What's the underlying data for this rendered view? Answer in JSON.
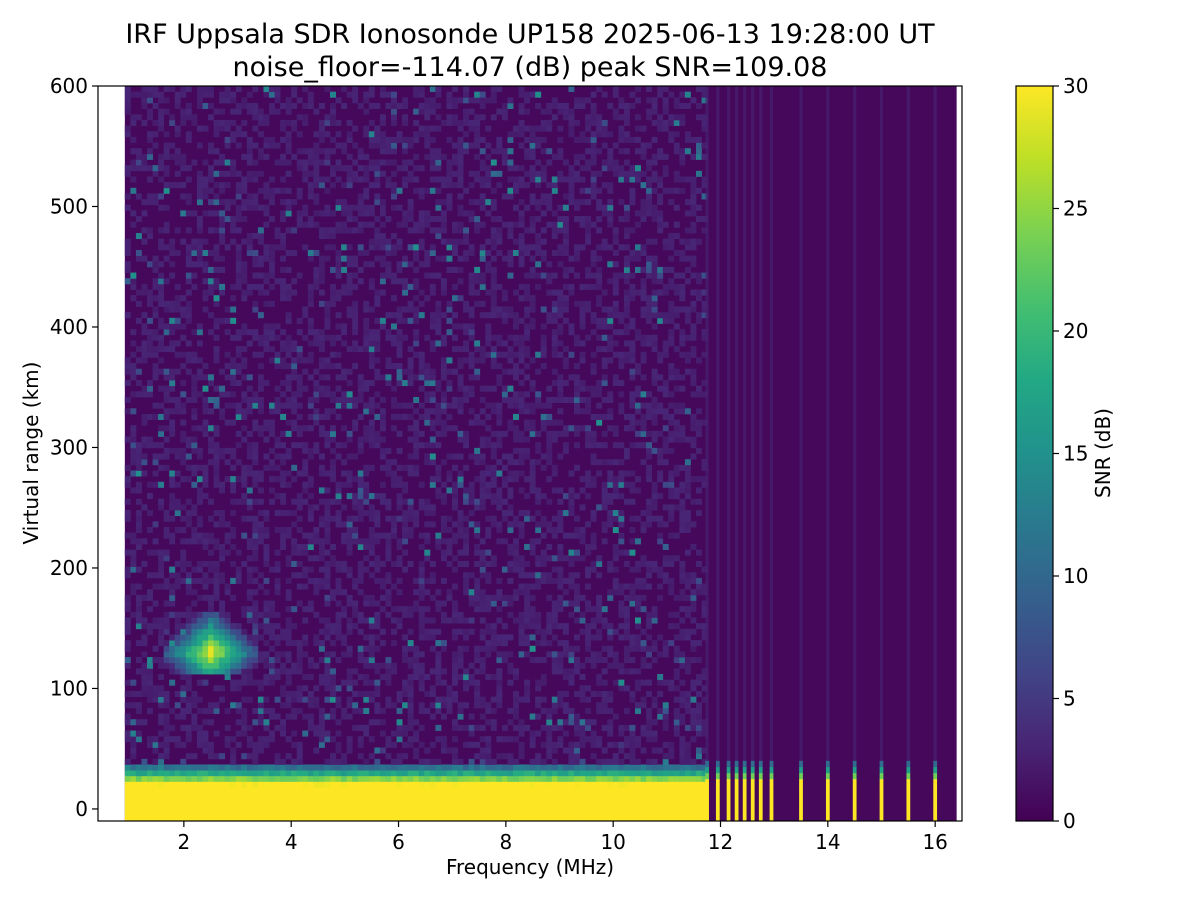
{
  "chart_data": {
    "type": "heatmap",
    "title": "IRF Uppsala SDR Ionosonde UP158 2025-06-13 19:28:00  UT",
    "subtitle": "noise_floor=-114.07 (dB) peak SNR=109.08",
    "xlabel": "Frequency (MHz)",
    "ylabel": "Virtual range (km)",
    "xlim": [
      0.4,
      16.5
    ],
    "ylim": [
      -10,
      600
    ],
    "x_ticks": [
      2,
      4,
      6,
      8,
      10,
      12,
      14,
      16
    ],
    "y_ticks": [
      0,
      100,
      200,
      300,
      400,
      500,
      600
    ],
    "colorbar": {
      "label": "SNR (dB)",
      "range": [
        0,
        30
      ],
      "ticks": [
        0,
        5,
        10,
        15,
        20,
        25,
        30
      ],
      "colormap": "viridis"
    },
    "data_frequency_range": [
      0.9,
      16.4
    ],
    "saturated_ground_band": {
      "freq_range": [
        0.9,
        11.7
      ],
      "range_km": [
        -5,
        20
      ],
      "snr": 30
    },
    "discrete_channels_mhz": [
      11.75,
      11.95,
      12.15,
      12.3,
      12.45,
      12.6,
      12.75,
      12.95,
      13.5,
      14.0,
      14.5,
      15.0,
      15.5,
      16.0
    ],
    "e_layer_echo": {
      "freq_range": [
        1.6,
        3.4
      ],
      "range_km": [
        115,
        165
      ],
      "peak_snr": 28
    },
    "background_snr": 1
  }
}
